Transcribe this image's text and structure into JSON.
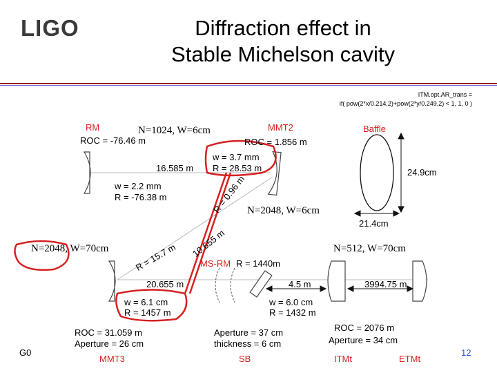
{
  "header": {
    "logo": "LIGO",
    "title_line1": "Diffraction effect in",
    "title_line2": "Stable Michelson cavity"
  },
  "code": {
    "line1": "ITM.opt.AR_trans =",
    "line2": "if( pow(2*x/0.214,2)+pow(2*y/0.249,2) < 1, 1, 0 )"
  },
  "components": {
    "rm": "RM",
    "rm_roc": "ROC = -76.46 m",
    "mmt2": "MMT2",
    "mmt2_roc": "ROC = 1.856 m",
    "baffle": "Baffle",
    "ms_rm": "MS-RM",
    "ms_rm_r": "R = 1440m",
    "mmt3": "MMT3",
    "mmt3_roc": "ROC = 31.059 m",
    "mmt3_ap": "Aperture = 26 cm",
    "sb": "SB",
    "sb_ap": "Aperture = 37 cm",
    "sb_thick": "thickness = 6 cm",
    "itmt": "ITMt",
    "etmt": "ETMt",
    "etm_roc": "ROC = 2076 m",
    "etm_ap": "Aperture = 34 cm"
  },
  "beam": {
    "w_top": "w = 3.7 mm",
    "r_top": "R = 28.53 m",
    "dist_top": "16.585 m",
    "w_rm": "w = 2.2 mm",
    "r_rm": "R = -76.38 m",
    "diag_r096": "R = 0.96 m",
    "diag_dist": "10.655 m",
    "diag_r157": "R = 15.7 m",
    "dist_bottom": "20.655 m",
    "w_mmt3": "w = 6.1 cm",
    "r_mmt3": "R = 1457 m",
    "dist_sb": "4.5 m",
    "w_sb": "w = 6.0 cm",
    "r_sb": "R = 1432 m",
    "dist_etm": "3994.75 m",
    "baffle_h": "24.9cm",
    "baffle_w": "21.4cm"
  },
  "sims": {
    "n1": "N=1024, W=6cm",
    "n2": "N=2048, W=6cm",
    "n3": "N=2048, W=70cm",
    "n4": "N=512, W=70cm"
  },
  "footer": {
    "left": "G0",
    "page": "12"
  },
  "colors": {
    "red": "#d62020",
    "rule": "#9b1f1f",
    "page": "#2a4fd6"
  }
}
